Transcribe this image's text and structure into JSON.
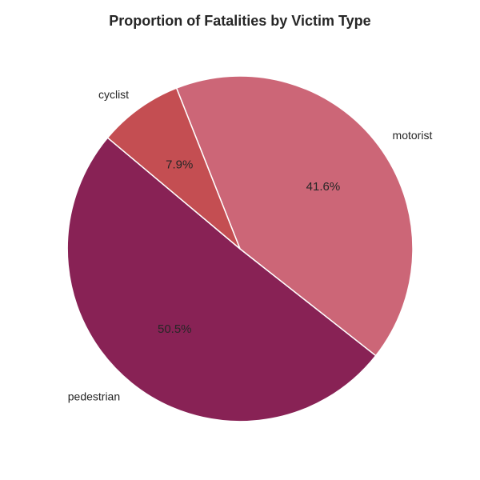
{
  "chart_data": {
    "type": "pie",
    "title": "Proportion of Fatalities by Victim Type",
    "start_angle_deg": 140,
    "direction": "counterclockwise",
    "slices": [
      {
        "label": "pedestrian",
        "value": 50.5,
        "pct_label": "50.5%",
        "color": "#882255"
      },
      {
        "label": "motorist",
        "value": 41.6,
        "pct_label": "41.6%",
        "color": "#CC6677"
      },
      {
        "label": "cyclist",
        "value": 7.9,
        "pct_label": "7.9%",
        "color": "#C44E52"
      }
    ],
    "edge_color": "#ffffff",
    "legend": "none"
  }
}
